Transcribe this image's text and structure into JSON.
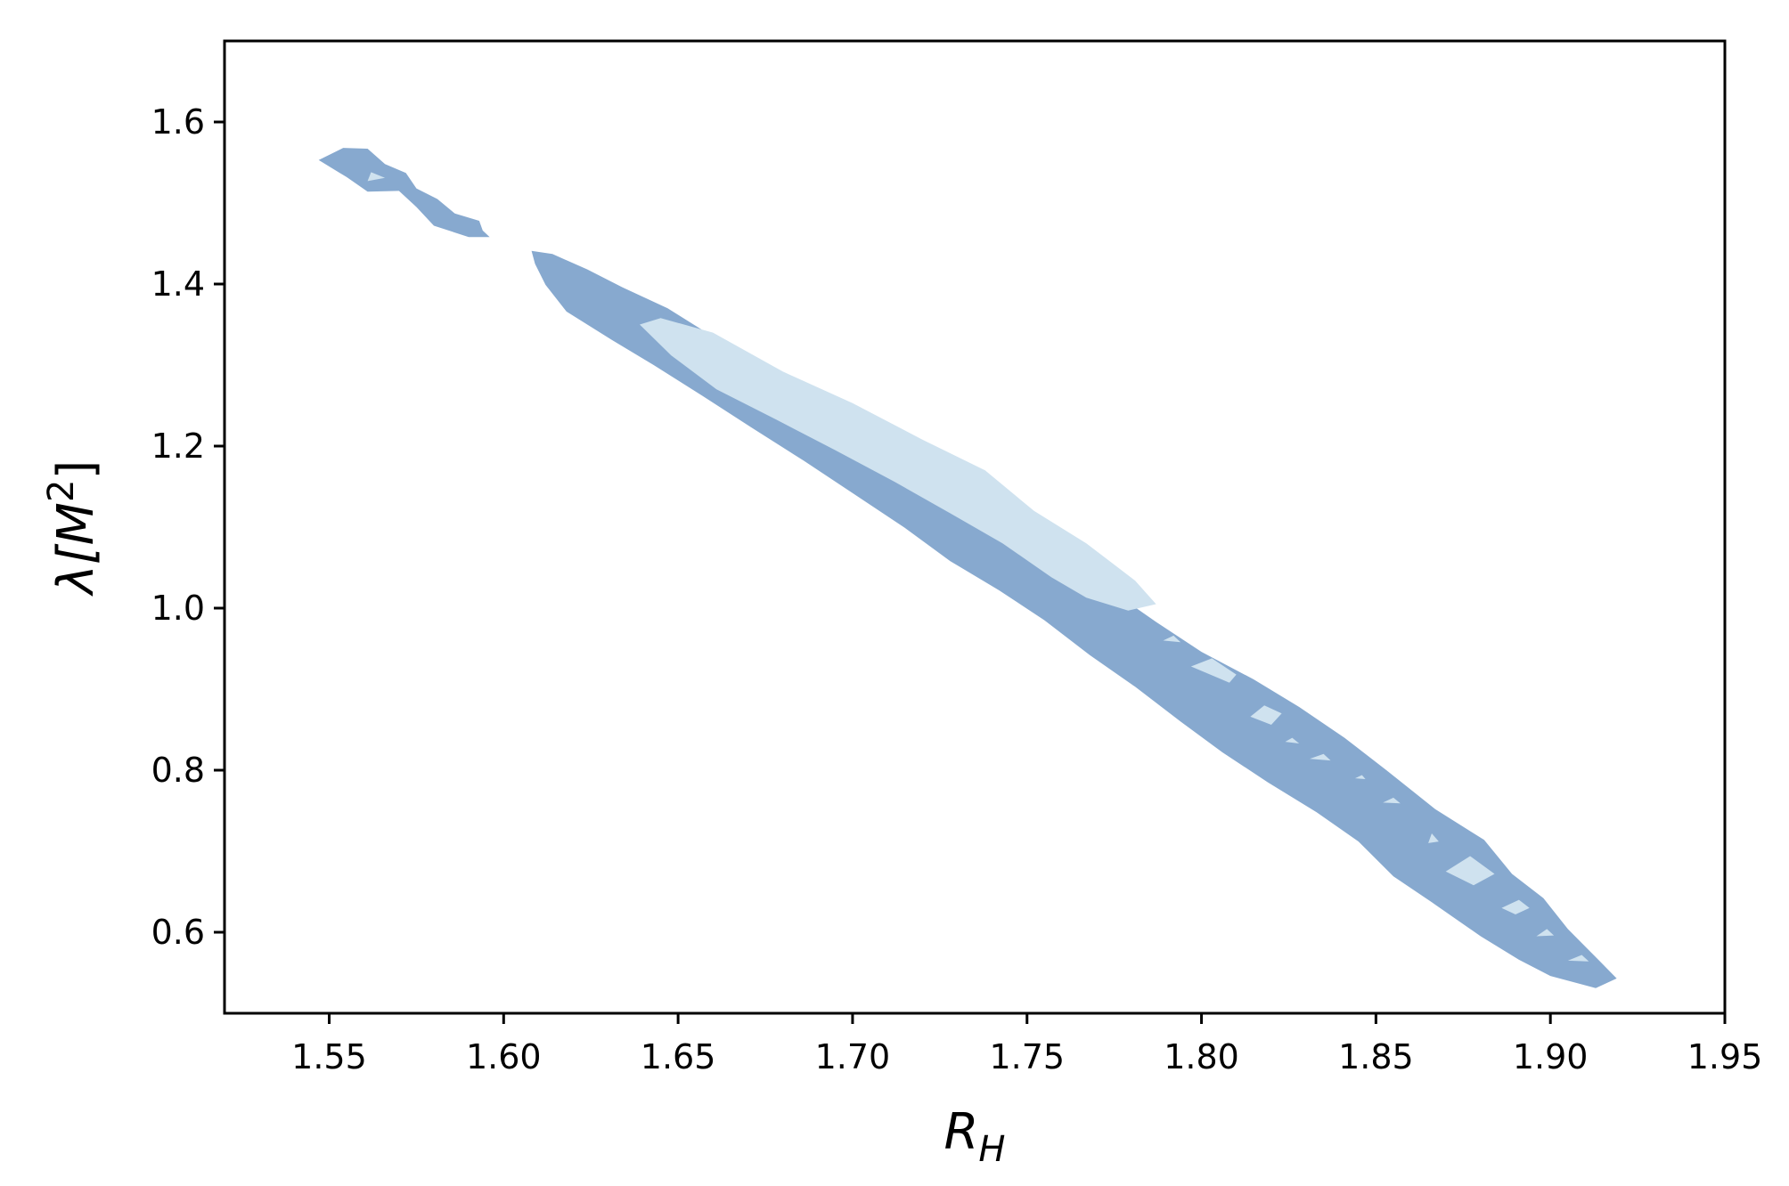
{
  "chart_data": {
    "type": "contour",
    "xlabel": "R",
    "xlabel_sub": "H",
    "ylabel_main": "λ[M",
    "ylabel_sup": "2",
    "ylabel_close": "]",
    "xlim": [
      1.52,
      1.95
    ],
    "ylim": [
      0.5,
      1.7
    ],
    "xticks": [
      1.55,
      1.6,
      1.65,
      1.7,
      1.75,
      1.8,
      1.85,
      1.9,
      1.95
    ],
    "xtick_labels": [
      "1.55",
      "1.60",
      "1.65",
      "1.70",
      "1.75",
      "1.80",
      "1.85",
      "1.90",
      "1.95"
    ],
    "yticks": [
      0.6,
      0.8,
      1.0,
      1.2,
      1.4,
      1.6
    ],
    "ytick_labels": [
      "0.6",
      "0.8",
      "1.0",
      "1.2",
      "1.4",
      "1.6"
    ],
    "colors": {
      "outer": "#87a9cf",
      "inner": "#cfe2ef"
    },
    "regions": [
      {
        "level": "outer",
        "points": [
          [
            1.547,
            1.553
          ],
          [
            1.554,
            1.568
          ],
          [
            1.561,
            1.567
          ],
          [
            1.566,
            1.548
          ],
          [
            1.572,
            1.537
          ],
          [
            1.575,
            1.518
          ],
          [
            1.581,
            1.505
          ],
          [
            1.586,
            1.487
          ],
          [
            1.593,
            1.478
          ],
          [
            1.594,
            1.466
          ],
          [
            1.596,
            1.458
          ],
          [
            1.59,
            1.458
          ],
          [
            1.58,
            1.472
          ],
          [
            1.575,
            1.495
          ],
          [
            1.57,
            1.515
          ],
          [
            1.561,
            1.514
          ],
          [
            1.555,
            1.532
          ]
        ]
      },
      {
        "level": "outer",
        "points": [
          [
            1.608,
            1.441
          ],
          [
            1.614,
            1.437
          ],
          [
            1.624,
            1.418
          ],
          [
            1.634,
            1.396
          ],
          [
            1.647,
            1.37
          ],
          [
            1.66,
            1.335
          ],
          [
            1.673,
            1.295
          ],
          [
            1.688,
            1.258
          ],
          [
            1.704,
            1.222
          ],
          [
            1.719,
            1.185
          ],
          [
            1.735,
            1.143
          ],
          [
            1.748,
            1.098
          ],
          [
            1.761,
            1.06
          ],
          [
            1.774,
            1.022
          ],
          [
            1.787,
            0.983
          ],
          [
            1.8,
            0.946
          ],
          [
            1.815,
            0.912
          ],
          [
            1.828,
            0.878
          ],
          [
            1.841,
            0.84
          ],
          [
            1.853,
            0.8
          ],
          [
            1.867,
            0.752
          ],
          [
            1.881,
            0.714
          ],
          [
            1.889,
            0.672
          ],
          [
            1.898,
            0.642
          ],
          [
            1.905,
            0.604
          ],
          [
            1.914,
            0.565
          ],
          [
            1.919,
            0.543
          ],
          [
            1.913,
            0.531
          ],
          [
            1.9,
            0.546
          ],
          [
            1.891,
            0.566
          ],
          [
            1.88,
            0.595
          ],
          [
            1.866,
            0.637
          ],
          [
            1.855,
            0.669
          ],
          [
            1.845,
            0.712
          ],
          [
            1.833,
            0.748
          ],
          [
            1.819,
            0.785
          ],
          [
            1.806,
            0.822
          ],
          [
            1.794,
            0.86
          ],
          [
            1.781,
            0.903
          ],
          [
            1.768,
            0.942
          ],
          [
            1.755,
            0.985
          ],
          [
            1.742,
            1.022
          ],
          [
            1.728,
            1.058
          ],
          [
            1.715,
            1.099
          ],
          [
            1.7,
            1.142
          ],
          [
            1.686,
            1.182
          ],
          [
            1.671,
            1.223
          ],
          [
            1.657,
            1.262
          ],
          [
            1.643,
            1.3
          ],
          [
            1.631,
            1.331
          ],
          [
            1.618,
            1.366
          ],
          [
            1.612,
            1.399
          ],
          [
            1.609,
            1.425
          ]
        ]
      },
      {
        "level": "inner",
        "points": [
          [
            1.562,
            1.538
          ],
          [
            1.566,
            1.531
          ],
          [
            1.561,
            1.527
          ]
        ]
      },
      {
        "level": "inner",
        "points": [
          [
            1.639,
            1.35
          ],
          [
            1.645,
            1.358
          ],
          [
            1.66,
            1.34
          ],
          [
            1.68,
            1.292
          ],
          [
            1.7,
            1.253
          ],
          [
            1.72,
            1.208
          ],
          [
            1.738,
            1.17
          ],
          [
            1.752,
            1.12
          ],
          [
            1.767,
            1.08
          ],
          [
            1.781,
            1.034
          ],
          [
            1.787,
            1.005
          ],
          [
            1.779,
            0.997
          ],
          [
            1.767,
            1.013
          ],
          [
            1.757,
            1.038
          ],
          [
            1.743,
            1.08
          ],
          [
            1.728,
            1.117
          ],
          [
            1.712,
            1.156
          ],
          [
            1.695,
            1.195
          ],
          [
            1.678,
            1.233
          ],
          [
            1.661,
            1.27
          ],
          [
            1.648,
            1.312
          ]
        ]
      },
      {
        "level": "inner",
        "points": [
          [
            1.789,
            0.96
          ],
          [
            1.792,
            0.966
          ],
          [
            1.794,
            0.958
          ]
        ]
      },
      {
        "level": "inner",
        "points": [
          [
            1.797,
            0.928
          ],
          [
            1.803,
            0.938
          ],
          [
            1.81,
            0.918
          ],
          [
            1.808,
            0.908
          ]
        ]
      },
      {
        "level": "inner",
        "points": [
          [
            1.814,
            0.866
          ],
          [
            1.818,
            0.88
          ],
          [
            1.823,
            0.87
          ],
          [
            1.82,
            0.856
          ]
        ]
      },
      {
        "level": "inner",
        "points": [
          [
            1.824,
            0.835
          ],
          [
            1.826,
            0.84
          ],
          [
            1.828,
            0.833
          ]
        ]
      },
      {
        "level": "inner",
        "points": [
          [
            1.831,
            0.814
          ],
          [
            1.835,
            0.82
          ],
          [
            1.837,
            0.812
          ]
        ]
      },
      {
        "level": "inner",
        "points": [
          [
            1.844,
            0.79
          ],
          [
            1.846,
            0.794
          ],
          [
            1.847,
            0.789
          ]
        ]
      },
      {
        "level": "inner",
        "points": [
          [
            1.852,
            0.76
          ],
          [
            1.855,
            0.766
          ],
          [
            1.857,
            0.759
          ]
        ]
      },
      {
        "level": "inner",
        "points": [
          [
            1.865,
            0.71
          ],
          [
            1.866,
            0.722
          ],
          [
            1.868,
            0.712
          ]
        ]
      },
      {
        "level": "inner",
        "points": [
          [
            1.87,
            0.675
          ],
          [
            1.877,
            0.694
          ],
          [
            1.884,
            0.672
          ],
          [
            1.878,
            0.658
          ]
        ]
      },
      {
        "level": "inner",
        "points": [
          [
            1.886,
            0.63
          ],
          [
            1.891,
            0.64
          ],
          [
            1.894,
            0.63
          ],
          [
            1.89,
            0.622
          ]
        ]
      },
      {
        "level": "inner",
        "points": [
          [
            1.896,
            0.595
          ],
          [
            1.899,
            0.604
          ],
          [
            1.901,
            0.596
          ]
        ]
      },
      {
        "level": "inner",
        "points": [
          [
            1.905,
            0.565
          ],
          [
            1.909,
            0.572
          ],
          [
            1.911,
            0.564
          ]
        ]
      }
    ]
  }
}
